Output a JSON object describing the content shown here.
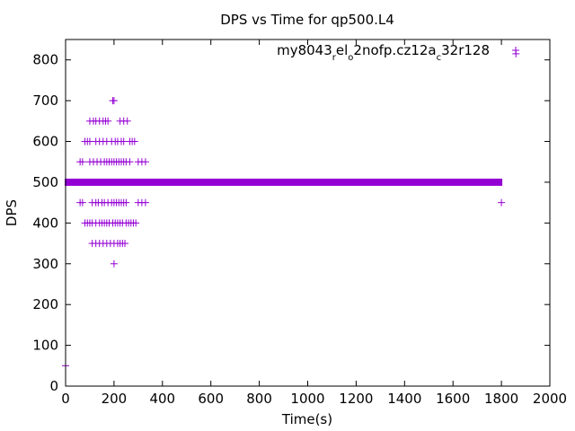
{
  "chart_data": {
    "type": "scatter",
    "title": "DPS vs Time for qp500.L4",
    "xlabel": "Time(s)",
    "ylabel": "DPS",
    "xlim": [
      0,
      2000
    ],
    "ylim": [
      0,
      850
    ],
    "x_ticks": [
      0,
      200,
      400,
      600,
      800,
      1000,
      1200,
      1400,
      1600,
      1800,
      2000
    ],
    "y_ticks": [
      0,
      100,
      200,
      300,
      400,
      500,
      600,
      700,
      800
    ],
    "grid": false,
    "legend_position": "top-right",
    "marker": "plus",
    "series_color": "#9400d3",
    "series": [
      {
        "name_parts": [
          {
            "text": "my8043",
            "sub": false
          },
          {
            "text": "r",
            "sub": true
          },
          {
            "text": "el",
            "sub": false
          },
          {
            "text": "o",
            "sub": true
          },
          {
            "text": "2nofp.cz12a",
            "sub": false
          },
          {
            "text": "c",
            "sub": true
          },
          {
            "text": "32r128",
            "sub": false
          }
        ],
        "line_500": {
          "x_start": 0,
          "x_end": 1800,
          "y": 500
        },
        "points": [
          [
            0,
            50
          ],
          [
            200,
            300
          ],
          [
            1800,
            450
          ],
          [
            1860,
            815
          ],
          [
            195,
            700
          ],
          [
            200,
            700
          ],
          [
            110,
            350
          ],
          [
            125,
            350
          ],
          [
            140,
            350
          ],
          [
            155,
            350
          ],
          [
            170,
            350
          ],
          [
            185,
            350
          ],
          [
            200,
            350
          ],
          [
            215,
            350
          ],
          [
            225,
            350
          ],
          [
            235,
            350
          ],
          [
            245,
            350
          ],
          [
            80,
            400
          ],
          [
            90,
            400
          ],
          [
            100,
            400
          ],
          [
            110,
            400
          ],
          [
            125,
            400
          ],
          [
            140,
            400
          ],
          [
            150,
            400
          ],
          [
            160,
            400
          ],
          [
            170,
            400
          ],
          [
            180,
            400
          ],
          [
            195,
            400
          ],
          [
            205,
            400
          ],
          [
            215,
            400
          ],
          [
            225,
            400
          ],
          [
            235,
            400
          ],
          [
            250,
            400
          ],
          [
            260,
            400
          ],
          [
            270,
            400
          ],
          [
            280,
            400
          ],
          [
            290,
            400
          ],
          [
            60,
            450
          ],
          [
            70,
            450
          ],
          [
            110,
            450
          ],
          [
            125,
            450
          ],
          [
            135,
            450
          ],
          [
            150,
            450
          ],
          [
            160,
            450
          ],
          [
            175,
            450
          ],
          [
            190,
            450
          ],
          [
            200,
            450
          ],
          [
            210,
            450
          ],
          [
            220,
            450
          ],
          [
            230,
            450
          ],
          [
            240,
            450
          ],
          [
            250,
            450
          ],
          [
            300,
            450
          ],
          [
            315,
            450
          ],
          [
            330,
            450
          ],
          [
            60,
            550
          ],
          [
            70,
            550
          ],
          [
            100,
            550
          ],
          [
            115,
            550
          ],
          [
            130,
            550
          ],
          [
            145,
            550
          ],
          [
            160,
            550
          ],
          [
            170,
            550
          ],
          [
            180,
            550
          ],
          [
            190,
            550
          ],
          [
            200,
            550
          ],
          [
            210,
            550
          ],
          [
            220,
            550
          ],
          [
            230,
            550
          ],
          [
            240,
            550
          ],
          [
            250,
            550
          ],
          [
            265,
            550
          ],
          [
            300,
            550
          ],
          [
            315,
            550
          ],
          [
            330,
            550
          ],
          [
            80,
            600
          ],
          [
            90,
            600
          ],
          [
            100,
            600
          ],
          [
            125,
            600
          ],
          [
            140,
            600
          ],
          [
            155,
            600
          ],
          [
            170,
            600
          ],
          [
            190,
            600
          ],
          [
            205,
            600
          ],
          [
            215,
            600
          ],
          [
            230,
            600
          ],
          [
            240,
            600
          ],
          [
            265,
            600
          ],
          [
            275,
            600
          ],
          [
            285,
            600
          ],
          [
            100,
            650
          ],
          [
            115,
            650
          ],
          [
            125,
            650
          ],
          [
            140,
            650
          ],
          [
            155,
            650
          ],
          [
            165,
            650
          ],
          [
            175,
            650
          ],
          [
            225,
            650
          ],
          [
            240,
            650
          ],
          [
            255,
            650
          ]
        ]
      }
    ]
  }
}
